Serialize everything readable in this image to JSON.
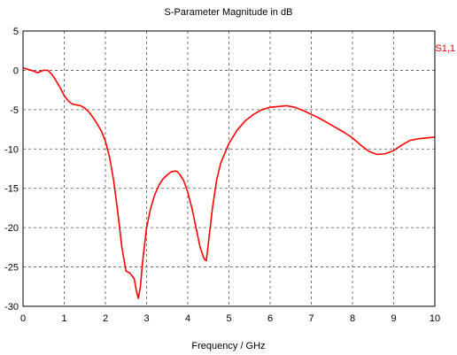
{
  "chart_data": {
    "type": "line",
    "title": "S-Parameter Magnitude in dB",
    "xlabel": "Frequency / GHz",
    "ylabel": "",
    "xlim": [
      0,
      10
    ],
    "ylim": [
      -30,
      5
    ],
    "x_ticks": [
      "0",
      "1",
      "2",
      "3",
      "4",
      "5",
      "6",
      "7",
      "8",
      "9",
      "10"
    ],
    "y_ticks": [
      "5",
      "0",
      "-5",
      "-10",
      "-15",
      "-20",
      "-25",
      "-30"
    ],
    "grid": true,
    "legend_position": "top-right",
    "series": [
      {
        "name": "S1,1",
        "color": "#ff0000",
        "x": [
          0,
          0.2,
          0.35,
          0.5,
          0.6,
          0.7,
          0.8,
          0.9,
          1.0,
          1.1,
          1.2,
          1.3,
          1.4,
          1.5,
          1.6,
          1.7,
          1.8,
          1.9,
          2.0,
          2.1,
          2.2,
          2.3,
          2.4,
          2.5,
          2.6,
          2.7,
          2.75,
          2.8,
          2.85,
          2.9,
          3.0,
          3.1,
          3.2,
          3.3,
          3.4,
          3.5,
          3.6,
          3.7,
          3.75,
          3.8,
          3.9,
          4.0,
          4.1,
          4.2,
          4.3,
          4.4,
          4.45,
          4.5,
          4.6,
          4.7,
          4.8,
          5.0,
          5.2,
          5.4,
          5.6,
          5.8,
          6.0,
          6.2,
          6.4,
          6.6,
          6.8,
          7.0,
          7.2,
          7.4,
          7.6,
          7.8,
          8.0,
          8.2,
          8.4,
          8.6,
          8.8,
          9.0,
          9.2,
          9.4,
          9.6,
          9.8,
          10.0
        ],
        "y": [
          0.3,
          0.0,
          -0.3,
          0.0,
          0.0,
          -0.5,
          -1.3,
          -2.2,
          -3.2,
          -3.9,
          -4.3,
          -4.4,
          -4.5,
          -4.8,
          -5.3,
          -6.0,
          -6.8,
          -7.7,
          -9.0,
          -11.0,
          -14.0,
          -18.0,
          -22.5,
          -25.5,
          -25.8,
          -26.5,
          -28.0,
          -29.0,
          -27.5,
          -24.5,
          -20.0,
          -17.5,
          -15.8,
          -14.6,
          -13.8,
          -13.3,
          -12.9,
          -12.8,
          -12.9,
          -13.2,
          -14.0,
          -15.5,
          -17.5,
          -20.0,
          -22.5,
          -24.0,
          -24.2,
          -22.0,
          -17.5,
          -14.0,
          -11.8,
          -9.3,
          -7.6,
          -6.4,
          -5.6,
          -5.0,
          -4.7,
          -4.6,
          -4.5,
          -4.7,
          -5.1,
          -5.6,
          -6.1,
          -6.7,
          -7.3,
          -7.9,
          -8.6,
          -9.5,
          -10.3,
          -10.7,
          -10.6,
          -10.2,
          -9.5,
          -8.9,
          -8.7,
          -8.6,
          -8.5
        ]
      }
    ]
  }
}
